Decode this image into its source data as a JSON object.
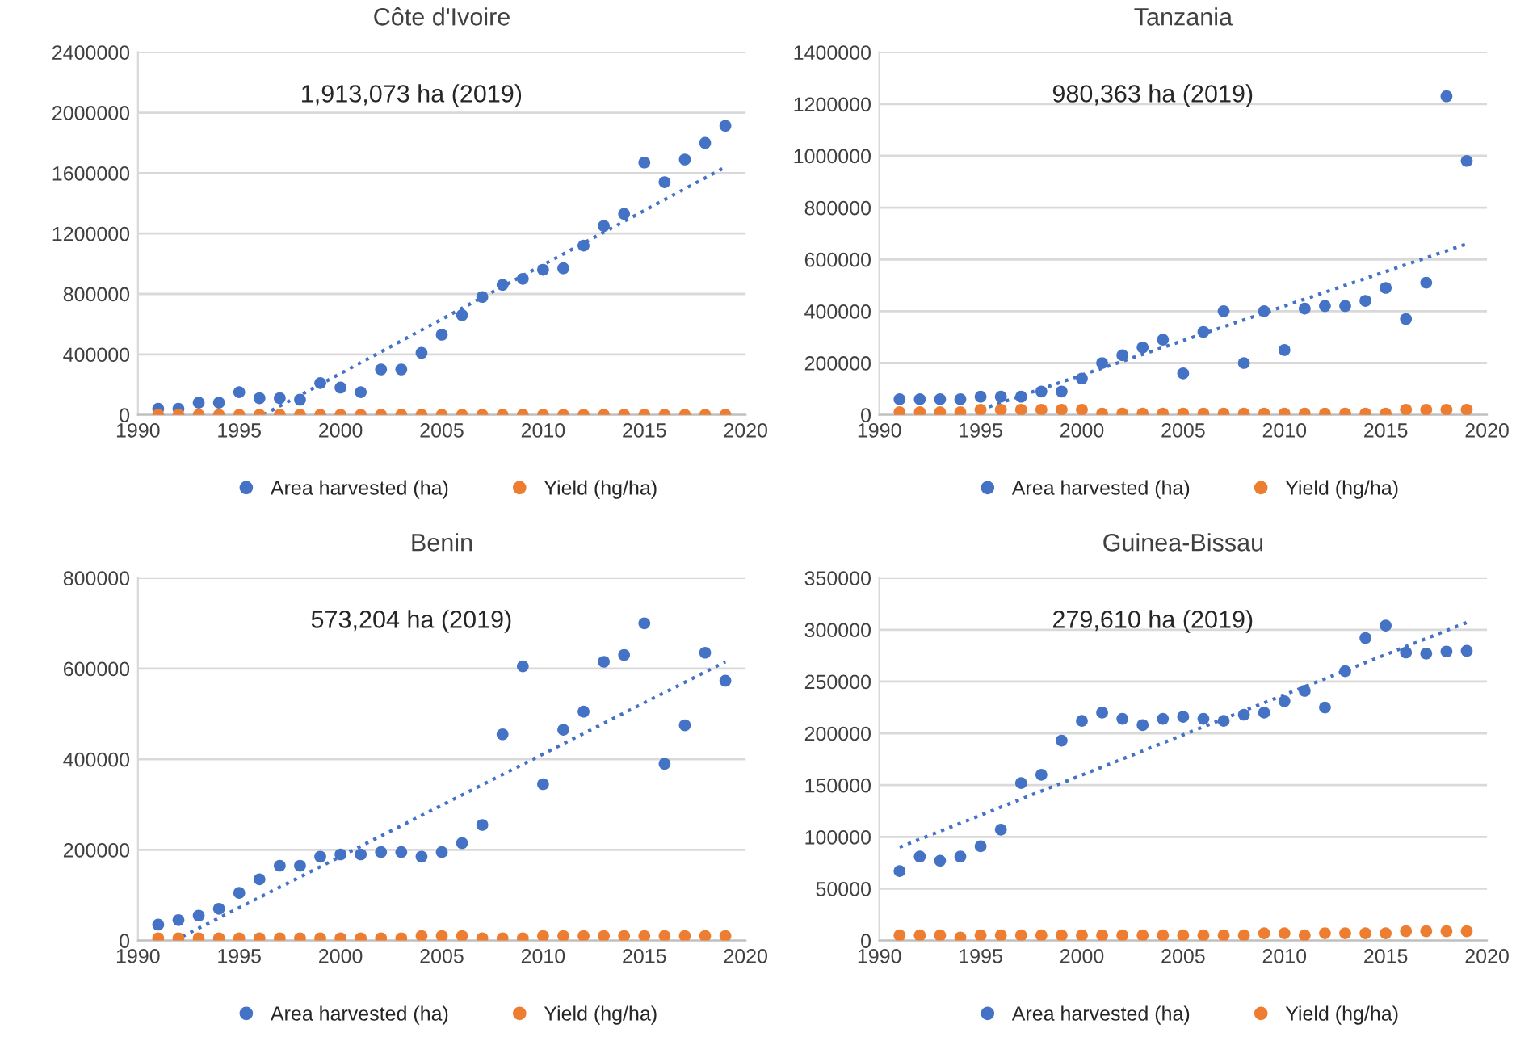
{
  "chart_data": [
    {
      "type": "scatter",
      "title": "Côte d'Ivoire",
      "annotations": [
        "1,913,073 ha (2019)"
      ],
      "xlim": [
        1990,
        2020
      ],
      "xticks": [
        1990,
        1995,
        2000,
        2005,
        2010,
        2015,
        2020
      ],
      "ylim": [
        0,
        2400000
      ],
      "yticks": [
        0,
        400000,
        800000,
        1200000,
        1600000,
        2000000,
        2400000
      ],
      "grid": "y",
      "legend": "bottom",
      "marker": "circle",
      "x": [
        1991,
        1992,
        1993,
        1994,
        1995,
        1996,
        1997,
        1998,
        1999,
        2000,
        2001,
        2002,
        2003,
        2004,
        2005,
        2006,
        2007,
        2008,
        2009,
        2010,
        2011,
        2012,
        2013,
        2014,
        2015,
        2016,
        2017,
        2018,
        2019
      ],
      "series": [
        {
          "name": "Area harvested (ha)",
          "color": "#4472c4",
          "values": [
            40000,
            40000,
            80000,
            80000,
            150000,
            110000,
            110000,
            100000,
            210000,
            180000,
            150000,
            300000,
            300000,
            410000,
            530000,
            660000,
            780000,
            860000,
            900000,
            960000,
            970000,
            1120000,
            1250000,
            1330000,
            1670000,
            1540000,
            1690000,
            1800000,
            1913073
          ]
        },
        {
          "name": "Yield (hg/ha)",
          "color": "#ed7d31",
          "values": [
            0,
            0,
            0,
            0,
            0,
            0,
            0,
            0,
            0,
            0,
            0,
            0,
            0,
            0,
            0,
            0,
            0,
            0,
            0,
            0,
            0,
            0,
            0,
            0,
            0,
            0,
            0,
            0,
            0
          ]
        },
        {
          "type": "line",
          "color": "#4472c4",
          "line_style": "dotted",
          "marker": "none",
          "x": [
            1996.2,
            2019
          ],
          "values": [
            0,
            1640000
          ]
        }
      ]
    },
    {
      "type": "scatter",
      "title": "Tanzania",
      "annotations": [
        "980,363 ha (2019)"
      ],
      "xlim": [
        1990,
        2020
      ],
      "xticks": [
        1990,
        1995,
        2000,
        2005,
        2010,
        2015,
        2020
      ],
      "ylim": [
        0,
        1400000
      ],
      "yticks": [
        0,
        200000,
        400000,
        600000,
        800000,
        1000000,
        1200000,
        1400000
      ],
      "grid": "y",
      "legend": "bottom",
      "marker": "circle",
      "x": [
        1991,
        1992,
        1993,
        1994,
        1995,
        1996,
        1997,
        1998,
        1999,
        2000,
        2001,
        2002,
        2003,
        2004,
        2005,
        2006,
        2007,
        2008,
        2009,
        2010,
        2011,
        2012,
        2013,
        2014,
        2015,
        2016,
        2017,
        2018,
        2019
      ],
      "series": [
        {
          "name": "Area harvested (ha)",
          "color": "#4472c4",
          "values": [
            60000,
            60000,
            60000,
            60000,
            70000,
            70000,
            70000,
            90000,
            90000,
            140000,
            200000,
            230000,
            260000,
            290000,
            160000,
            320000,
            400000,
            200000,
            400000,
            250000,
            410000,
            420000,
            420000,
            440000,
            490000,
            370000,
            510000,
            1230000,
            980363
          ]
        },
        {
          "name": "Yield (hg/ha)",
          "color": "#ed7d31",
          "values": [
            10000,
            10000,
            10000,
            10000,
            20000,
            20000,
            20000,
            20000,
            20000,
            20000,
            5000,
            5000,
            5000,
            5000,
            5000,
            5000,
            5000,
            5000,
            5000,
            5000,
            5000,
            5000,
            5000,
            5000,
            5000,
            20000,
            20000,
            20000,
            20000
          ]
        },
        {
          "type": "line",
          "color": "#4472c4",
          "line_style": "dotted",
          "marker": "none",
          "x": [
            1995,
            2019
          ],
          "values": [
            20000,
            660000
          ]
        }
      ]
    },
    {
      "type": "scatter",
      "title": "Benin",
      "annotations": [
        "573,204 ha (2019)"
      ],
      "xlim": [
        1990,
        2020
      ],
      "xticks": [
        1990,
        1995,
        2000,
        2005,
        2010,
        2015,
        2020
      ],
      "ylim": [
        0,
        800000
      ],
      "yticks": [
        0,
        200000,
        400000,
        600000,
        800000
      ],
      "grid": "y",
      "legend": "bottom",
      "marker": "circle",
      "x": [
        1991,
        1992,
        1993,
        1994,
        1995,
        1996,
        1997,
        1998,
        1999,
        2000,
        2001,
        2002,
        2003,
        2004,
        2005,
        2006,
        2007,
        2008,
        2009,
        2010,
        2011,
        2012,
        2013,
        2014,
        2015,
        2016,
        2017,
        2018,
        2019
      ],
      "series": [
        {
          "name": "Area harvested (ha)",
          "color": "#4472c4",
          "values": [
            35000,
            45000,
            55000,
            70000,
            105000,
            135000,
            165000,
            165000,
            185000,
            190000,
            190000,
            195000,
            195000,
            185000,
            195000,
            215000,
            255000,
            455000,
            605000,
            345000,
            465000,
            505000,
            615000,
            630000,
            700000,
            390000,
            475000,
            635000,
            573204
          ]
        },
        {
          "name": "Yield (hg/ha)",
          "color": "#ed7d31",
          "values": [
            5000,
            5000,
            5000,
            5000,
            5000,
            5000,
            5000,
            5000,
            5000,
            5000,
            5000,
            5000,
            5000,
            10000,
            10000,
            10000,
            5000,
            5000,
            5000,
            10000,
            10000,
            10000,
            10000,
            10000,
            10000,
            10000,
            10000,
            10000,
            10000
          ]
        },
        {
          "type": "line",
          "color": "#4472c4",
          "line_style": "dotted",
          "marker": "none",
          "x": [
            1991.8,
            2019
          ],
          "values": [
            0,
            615000
          ]
        }
      ]
    },
    {
      "type": "scatter",
      "title": "Guinea-Bissau",
      "annotations": [
        "279,610 ha (2019)"
      ],
      "xlim": [
        1990,
        2020
      ],
      "xticks": [
        1990,
        1995,
        2000,
        2005,
        2010,
        2015,
        2020
      ],
      "ylim": [
        0,
        350000
      ],
      "yticks": [
        0,
        50000,
        100000,
        150000,
        200000,
        250000,
        300000,
        350000
      ],
      "grid": "y",
      "legend": "bottom",
      "marker": "circle",
      "x": [
        1991,
        1992,
        1993,
        1994,
        1995,
        1996,
        1997,
        1998,
        1999,
        2000,
        2001,
        2002,
        2003,
        2004,
        2005,
        2006,
        2007,
        2008,
        2009,
        2010,
        2011,
        2012,
        2013,
        2014,
        2015,
        2016,
        2017,
        2018,
        2019
      ],
      "series": [
        {
          "name": "Area harvested (ha)",
          "color": "#4472c4",
          "values": [
            67000,
            81000,
            77000,
            81000,
            91000,
            107000,
            152000,
            160000,
            193000,
            212000,
            220000,
            214000,
            208000,
            214000,
            216000,
            214000,
            212000,
            218000,
            220000,
            231000,
            241000,
            225000,
            260000,
            292000,
            304000,
            278000,
            277000,
            279000,
            279610
          ]
        },
        {
          "name": "Yield (hg/ha)",
          "color": "#ed7d31",
          "values": [
            5000,
            5000,
            5000,
            3000,
            5000,
            5000,
            5000,
            5000,
            5000,
            5000,
            5000,
            5000,
            5000,
            5000,
            5000,
            5000,
            5000,
            5000,
            7000,
            7000,
            5000,
            7000,
            7000,
            7000,
            7000,
            9000,
            9000,
            9000,
            9000
          ]
        },
        {
          "type": "line",
          "color": "#4472c4",
          "line_style": "dotted",
          "marker": "none",
          "x": [
            1991,
            2019
          ],
          "values": [
            90000,
            307000
          ]
        }
      ]
    }
  ]
}
